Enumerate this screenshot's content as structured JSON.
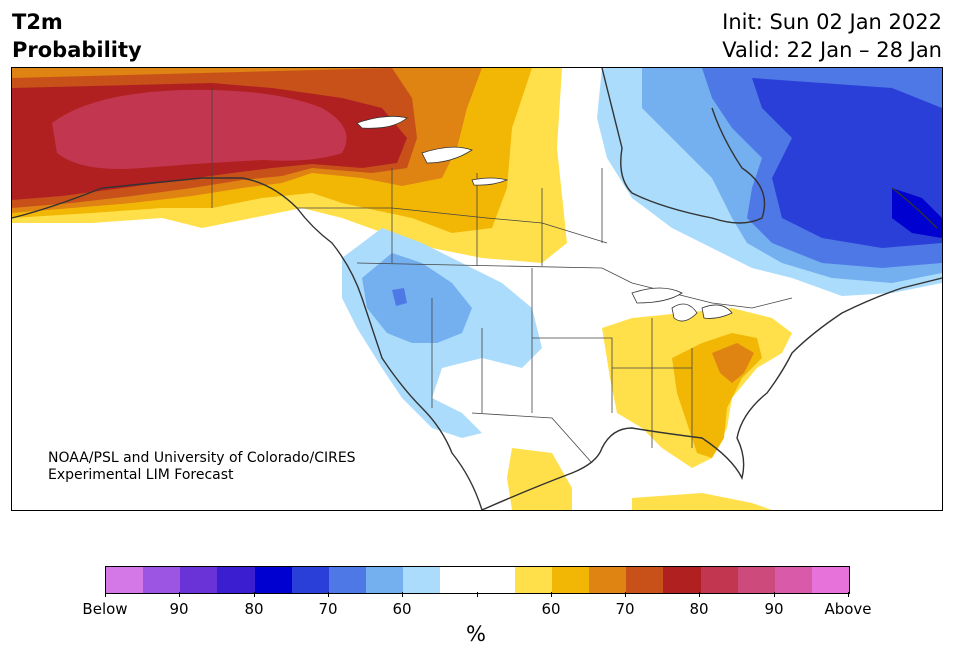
{
  "header": {
    "variable": "T2m",
    "product": "Probability",
    "init": "Init: Sun 02 Jan 2022",
    "valid": "Valid: 22 Jan – 28 Jan"
  },
  "credit": {
    "line1": "NOAA/PSL and University of Colorado/CIRES",
    "line2": "Experimental LIM Forecast"
  },
  "colorbar": {
    "unit": "%",
    "colors": [
      "#d478e8",
      "#9b55e2",
      "#6a33d8",
      "#3a1ed0",
      "#0000d0",
      "#2a3fd8",
      "#4e78e6",
      "#74b0f0",
      "#acdcfb",
      "#ffffff",
      "#ffffff",
      "#ffe04a",
      "#f2b705",
      "#df8312",
      "#c75119",
      "#b02020",
      "#c23650",
      "#cd4a7c",
      "#d95aa8",
      "#e772d9"
    ],
    "labels": [
      "Below",
      "90",
      "80",
      "70",
      "60",
      "",
      "60",
      "70",
      "80",
      "90",
      "Above"
    ]
  },
  "map": {
    "region": "North America",
    "legend_colors": {
      "above_50": "#ffe04a",
      "above_60": "#f2b705",
      "above_70": "#df8312",
      "above_75": "#c75119",
      "above_80": "#b02020",
      "above_85": "#c23650",
      "below_50": "#acdcfb",
      "below_60": "#74b0f0",
      "below_70": "#4e78e6",
      "below_80": "#2a3fd8",
      "below_85": "#0000d0"
    }
  }
}
